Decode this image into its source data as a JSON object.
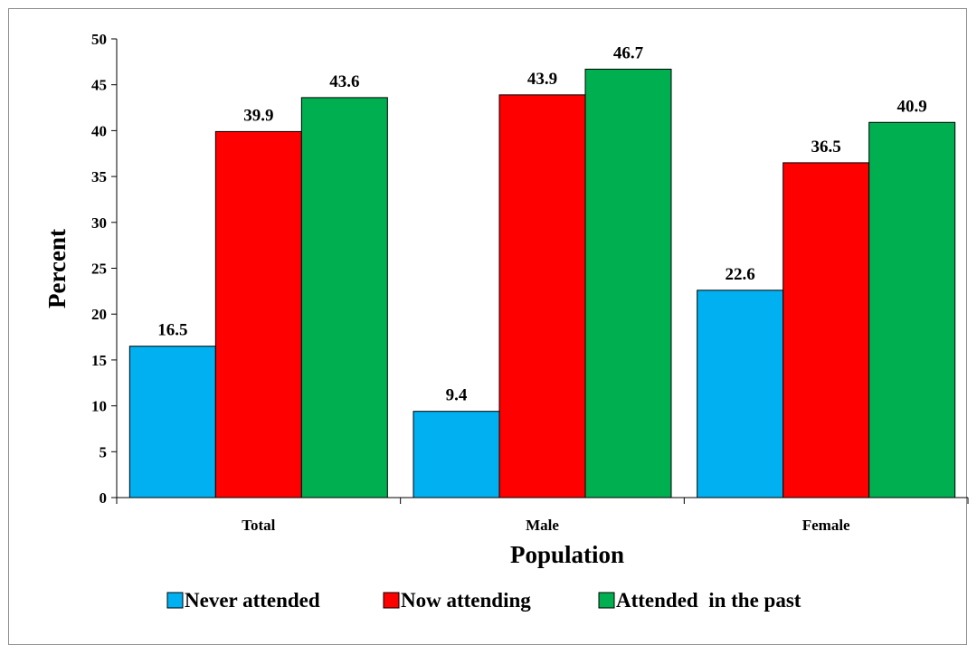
{
  "chart_data": {
    "type": "bar",
    "xlabel": "Population",
    "ylabel": "Percent",
    "ylim": [
      0,
      50
    ],
    "yticks": [
      0,
      5,
      10,
      15,
      20,
      25,
      30,
      35,
      40,
      45,
      50
    ],
    "categories": [
      "Total",
      "Male",
      "Female"
    ],
    "series": [
      {
        "name": "Never attended",
        "values": [
          16.5,
          9.4,
          22.6
        ],
        "color": "#00B0F0"
      },
      {
        "name": "Now attending",
        "values": [
          39.9,
          43.9,
          36.5
        ],
        "color": "#FF0000"
      },
      {
        "name": "Attended  in the past",
        "values": [
          43.6,
          46.7,
          40.9
        ],
        "color": "#00B050"
      }
    ],
    "legend_position": "bottom",
    "grid": false
  }
}
